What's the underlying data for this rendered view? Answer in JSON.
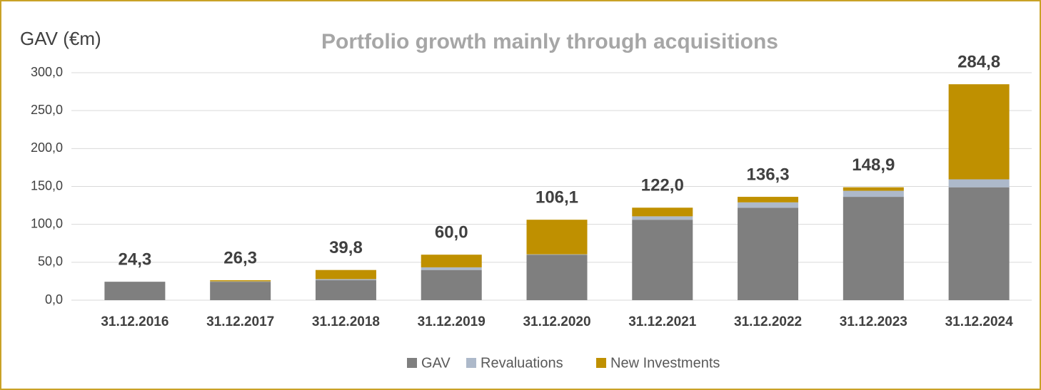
{
  "chart_data": {
    "type": "stacked_bar",
    "title": "Portfolio growth mainly through acquisitions",
    "y_label": "GAV (€m)",
    "categories": [
      "31.12.2016",
      "31.12.2017",
      "31.12.2018",
      "31.12.2019",
      "31.12.2020",
      "31.12.2021",
      "31.12.2022",
      "31.12.2023",
      "31.12.2024"
    ],
    "series": [
      {
        "name": "GAV",
        "color": "#7f7f7f",
        "values": [
          24.3,
          24.3,
          26.3,
          39.8,
          60.0,
          106.1,
          122.0,
          136.3,
          148.9
        ]
      },
      {
        "name": "Revaluations",
        "color": "#adb9ca",
        "values": [
          0,
          0.5,
          1.5,
          3.5,
          0.5,
          4.5,
          7.0,
          8.0,
          10.5
        ]
      },
      {
        "name": "New Investments",
        "color": "#bf9000",
        "values": [
          0,
          1.5,
          12.0,
          16.7,
          45.6,
          11.4,
          7.3,
          4.6,
          125.4
        ]
      }
    ],
    "totals": [
      24.3,
      26.3,
      39.8,
      60.0,
      106.1,
      122.0,
      136.3,
      148.9,
      284.8
    ],
    "totals_labels": [
      "24,3",
      "26,3",
      "39,8",
      "60,0",
      "106,1",
      "122,0",
      "136,3",
      "148,9",
      "284,8"
    ],
    "ylim": [
      0,
      300
    ],
    "yticks": [
      {
        "value": 0,
        "label": "0,0"
      },
      {
        "value": 50,
        "label": "50,0"
      },
      {
        "value": 100,
        "label": "100,0"
      },
      {
        "value": 150,
        "label": "150,0"
      },
      {
        "value": 200,
        "label": "200,0"
      },
      {
        "value": 250,
        "label": "250,0"
      },
      {
        "value": 300,
        "label": "300,0"
      }
    ],
    "grid": true,
    "legend": "bottom"
  }
}
